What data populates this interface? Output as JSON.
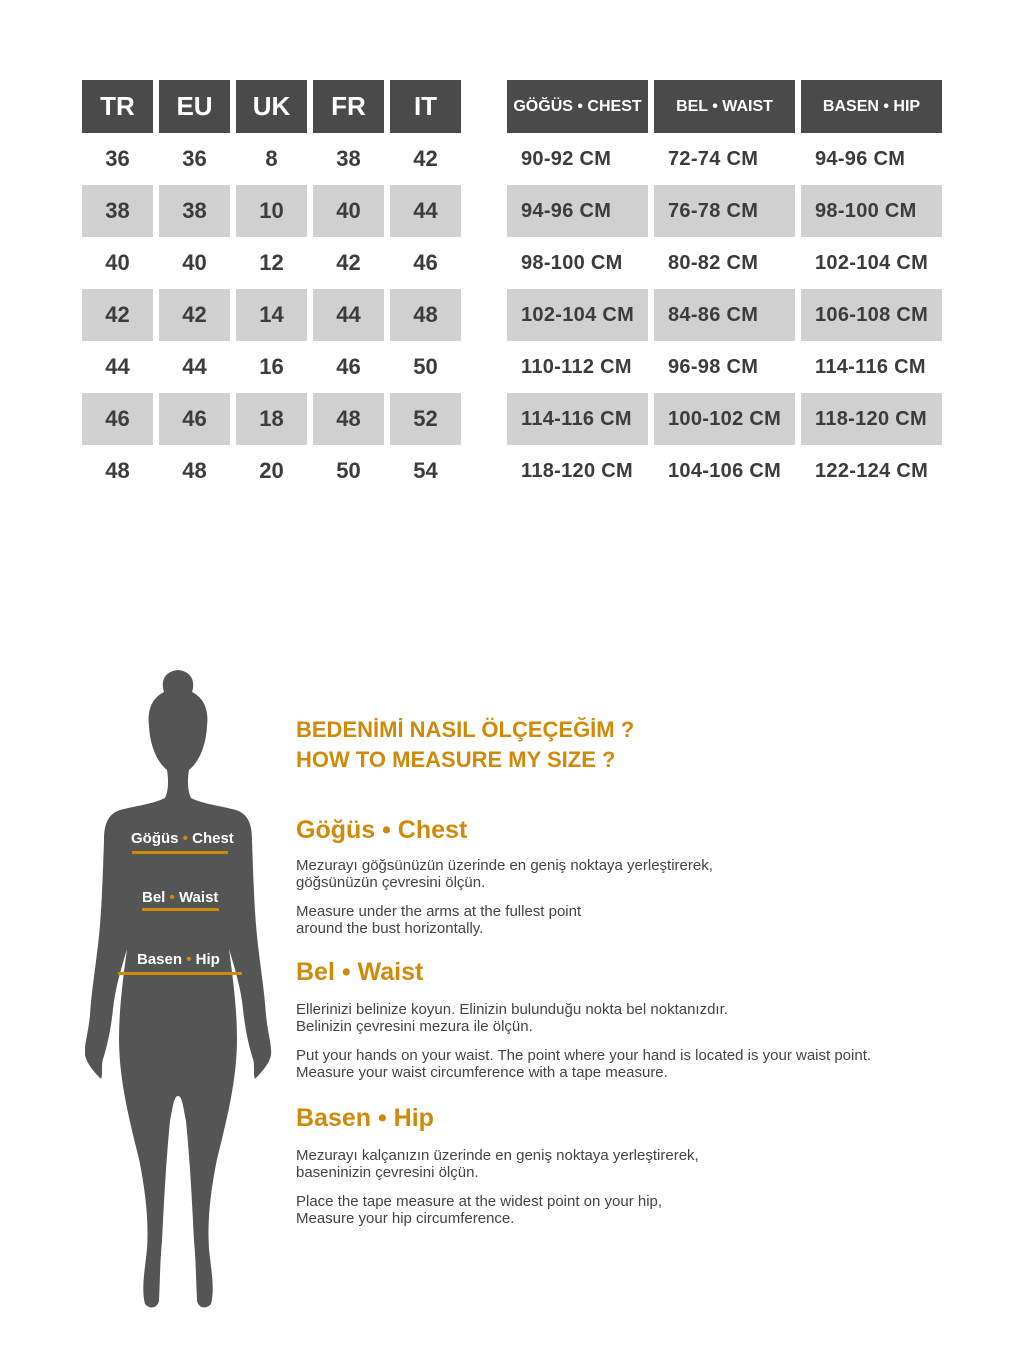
{
  "size_table": {
    "headers": [
      "TR",
      "EU",
      "UK",
      "FR",
      "IT"
    ],
    "rows": [
      [
        "36",
        "36",
        "8",
        "38",
        "42"
      ],
      [
        "38",
        "38",
        "10",
        "40",
        "44"
      ],
      [
        "40",
        "40",
        "12",
        "42",
        "46"
      ],
      [
        "42",
        "42",
        "14",
        "44",
        "48"
      ],
      [
        "44",
        "44",
        "16",
        "46",
        "50"
      ],
      [
        "46",
        "46",
        "18",
        "48",
        "52"
      ],
      [
        "48",
        "48",
        "20",
        "50",
        "54"
      ]
    ]
  },
  "measure_table": {
    "headers": [
      "GÖĞÜS • CHEST",
      "BEL • WAIST",
      "BASEN • HIP"
    ],
    "rows": [
      [
        "90-92 CM",
        "72-74 CM",
        "94-96 CM"
      ],
      [
        "94-96 CM",
        "76-78 CM",
        "98-100 CM"
      ],
      [
        "98-100 CM",
        "80-82 CM",
        "102-104 CM"
      ],
      [
        "102-104 CM",
        "84-86 CM",
        "106-108 CM"
      ],
      [
        "110-112 CM",
        "96-98 CM",
        "114-116 CM"
      ],
      [
        "114-116 CM",
        "100-102 CM",
        "118-120 CM"
      ],
      [
        "118-120 CM",
        "104-106 CM",
        "122-124 CM"
      ]
    ]
  },
  "figure": {
    "chest_tr": "Göğüs",
    "chest_en": "Chest",
    "waist_tr": "Bel",
    "waist_en": "Waist",
    "hip_tr": "Basen",
    "hip_en": "Hip",
    "dot": "•"
  },
  "guide": {
    "title_tr": "BEDENİMİ NASIL ÖLÇEÇEĞİM ?",
    "title_en": "HOW TO MEASURE MY SIZE ?",
    "chest": {
      "heading": "Göğüs • Chest",
      "tr": "Mezurayı göğsünüzün üzerinde en geniş noktaya yerleştirerek,\ngöğsünüzün çevresini ölçün.",
      "en": "Measure under the arms at the fullest point\naround the bust horizontally."
    },
    "waist": {
      "heading": "Bel • Waist",
      "tr": "Ellerinizi belinize koyun. Elinizin bulunduğu nokta bel noktanızdır.\nBelinizin çevresini mezura ile ölçün.",
      "en": "Put your hands on your waist. The point where your hand is located is your waist point.\nMeasure your waist circumference with a tape measure."
    },
    "hip": {
      "heading": "Basen • Hip",
      "tr": "Mezurayı kalçanızın üzerinde en geniş noktaya yerleştirerek,\nbaseninizin çevresini ölçün.",
      "en": "Place the tape measure at the widest point on your hip,\nMeasure your hip circumference."
    }
  },
  "colors": {
    "header": "#4a4a4a",
    "stripe": "#d0d0d0",
    "accent": "#d08a0a",
    "silhouette": "#555555"
  }
}
